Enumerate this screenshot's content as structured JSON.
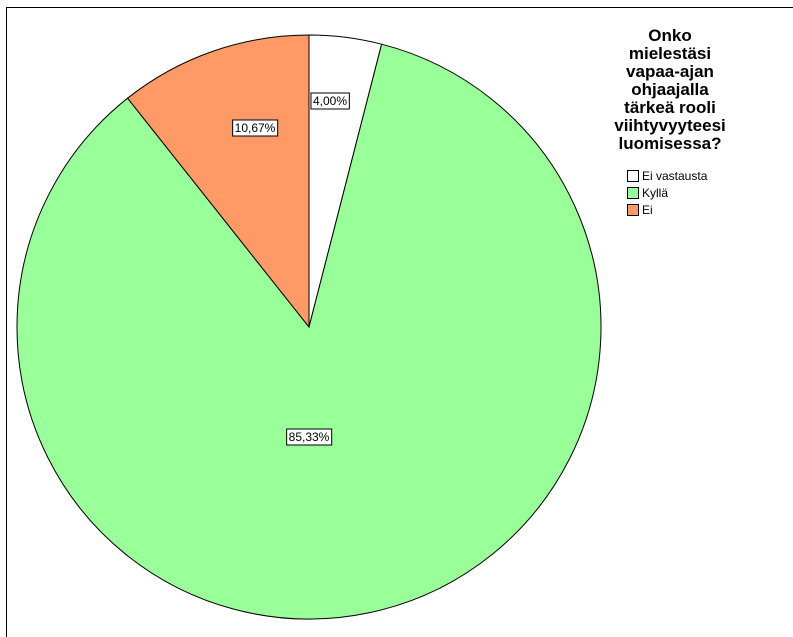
{
  "chart_data": {
    "type": "pie",
    "title": "Onko\nmielestäsi\nvapaa-ajan\nohjaajalla\ntärkeä rooli\nviihtyvyyteesi\nluomisessa?",
    "slices": [
      {
        "name": "Ei vastausta",
        "value": 4.0,
        "label": "4,00%",
        "color": "#ffffff"
      },
      {
        "name": "Kyllä",
        "value": 85.33,
        "label": "85,33%",
        "color": "#99ff99"
      },
      {
        "name": "Ei",
        "value": 10.67,
        "label": "10,67%",
        "color": "#ff9966"
      }
    ],
    "start_angle_deg": 0,
    "direction": "clockwise",
    "legend_position": "top-right"
  }
}
